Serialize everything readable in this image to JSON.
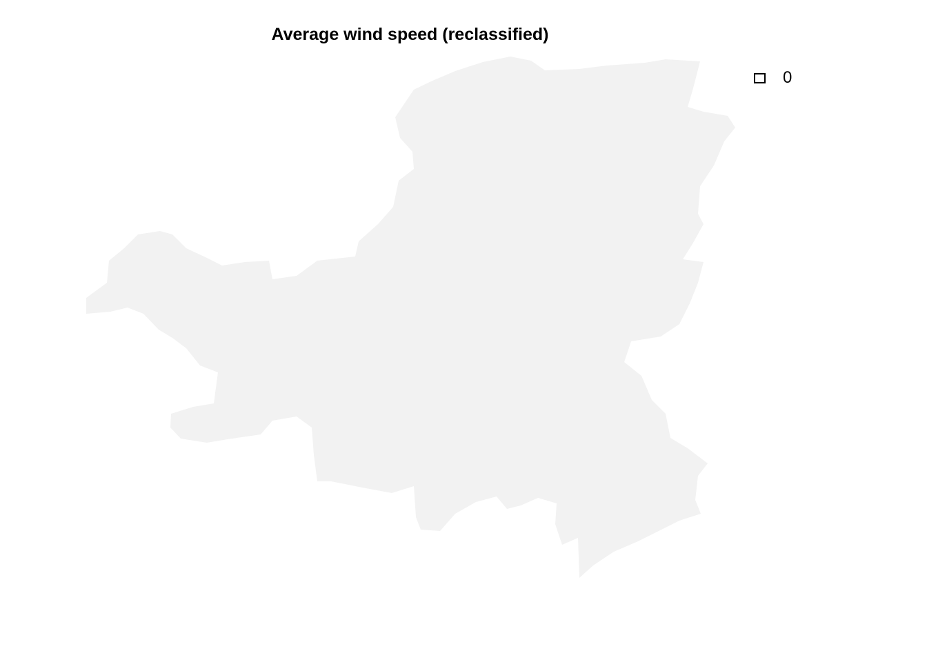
{
  "map": {
    "title": "Average wind speed (reclassified)",
    "region_fill": "#f2f2f2",
    "background": "#ffffff"
  },
  "legend": {
    "items": [
      {
        "label": "0",
        "fill": "#ffffff",
        "border": "#000000"
      }
    ]
  }
}
